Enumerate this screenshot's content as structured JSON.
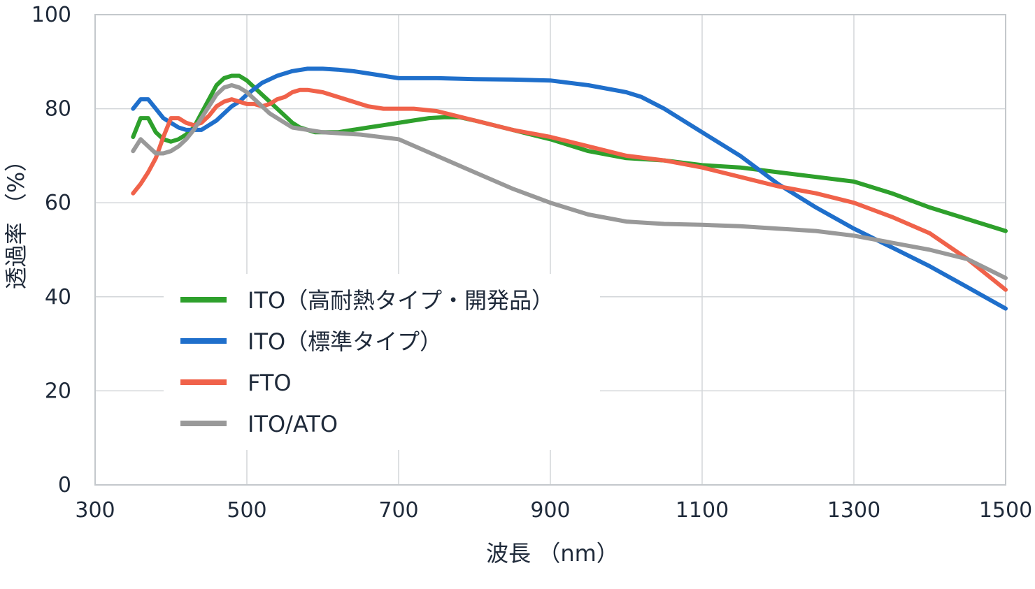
{
  "chart_data": {
    "type": "line",
    "xlabel": "波長 （nm）",
    "ylabel": "透過率 （%）",
    "xlim": [
      300,
      1500
    ],
    "ylim": [
      0,
      100
    ],
    "xticks": [
      "300",
      "500",
      "700",
      "900",
      "1100",
      "1300",
      "1500"
    ],
    "yticks": [
      "0",
      "20",
      "40",
      "60",
      "80",
      "100"
    ],
    "grid": true,
    "legend_position": "center-left",
    "series": [
      {
        "name": "ITO（高耐熱タイプ・開発品）",
        "color": "#2ea02c",
        "points": [
          [
            350,
            74
          ],
          [
            360,
            78
          ],
          [
            370,
            78
          ],
          [
            380,
            75
          ],
          [
            390,
            73.5
          ],
          [
            400,
            73
          ],
          [
            410,
            73.5
          ],
          [
            420,
            74.5
          ],
          [
            430,
            76
          ],
          [
            440,
            79
          ],
          [
            450,
            82
          ],
          [
            460,
            85
          ],
          [
            470,
            86.5
          ],
          [
            480,
            87
          ],
          [
            490,
            87
          ],
          [
            500,
            86
          ],
          [
            510,
            84.5
          ],
          [
            520,
            83
          ],
          [
            530,
            81.5
          ],
          [
            540,
            80
          ],
          [
            550,
            78.5
          ],
          [
            560,
            77
          ],
          [
            570,
            76
          ],
          [
            580,
            75.5
          ],
          [
            590,
            75
          ],
          [
            600,
            75
          ],
          [
            620,
            75
          ],
          [
            640,
            75.5
          ],
          [
            660,
            76
          ],
          [
            680,
            76.5
          ],
          [
            700,
            77
          ],
          [
            720,
            77.5
          ],
          [
            740,
            78
          ],
          [
            760,
            78.2
          ],
          [
            780,
            78.2
          ],
          [
            800,
            77.5
          ],
          [
            850,
            75.5
          ],
          [
            900,
            73.5
          ],
          [
            950,
            71
          ],
          [
            1000,
            69.5
          ],
          [
            1050,
            69
          ],
          [
            1100,
            68
          ],
          [
            1150,
            67.5
          ],
          [
            1200,
            66.5
          ],
          [
            1250,
            65.5
          ],
          [
            1300,
            64.5
          ],
          [
            1350,
            62
          ],
          [
            1400,
            59
          ],
          [
            1450,
            56.5
          ],
          [
            1500,
            54
          ]
        ]
      },
      {
        "name": "ITO（標準タイプ）",
        "color": "#1f6fcb",
        "points": [
          [
            350,
            80
          ],
          [
            360,
            82
          ],
          [
            370,
            82
          ],
          [
            380,
            80
          ],
          [
            390,
            78
          ],
          [
            400,
            77
          ],
          [
            410,
            76
          ],
          [
            420,
            75.5
          ],
          [
            430,
            75.5
          ],
          [
            440,
            75.5
          ],
          [
            450,
            76.5
          ],
          [
            460,
            77.5
          ],
          [
            470,
            79
          ],
          [
            480,
            80.5
          ],
          [
            490,
            81.5
          ],
          [
            500,
            83
          ],
          [
            520,
            85.5
          ],
          [
            540,
            87
          ],
          [
            560,
            88
          ],
          [
            580,
            88.5
          ],
          [
            600,
            88.5
          ],
          [
            620,
            88.3
          ],
          [
            640,
            88
          ],
          [
            660,
            87.5
          ],
          [
            680,
            87
          ],
          [
            700,
            86.5
          ],
          [
            750,
            86.5
          ],
          [
            800,
            86.3
          ],
          [
            850,
            86.2
          ],
          [
            900,
            86
          ],
          [
            950,
            85
          ],
          [
            1000,
            83.5
          ],
          [
            1020,
            82.5
          ],
          [
            1050,
            80
          ],
          [
            1100,
            75
          ],
          [
            1150,
            70
          ],
          [
            1200,
            64
          ],
          [
            1250,
            59
          ],
          [
            1300,
            54.5
          ],
          [
            1350,
            50.5
          ],
          [
            1400,
            46.5
          ],
          [
            1450,
            42
          ],
          [
            1500,
            37.5
          ]
        ]
      },
      {
        "name": "FTO",
        "color": "#f0624a",
        "points": [
          [
            350,
            62
          ],
          [
            360,
            64
          ],
          [
            370,
            66.5
          ],
          [
            380,
            69.5
          ],
          [
            390,
            74
          ],
          [
            400,
            78
          ],
          [
            410,
            78
          ],
          [
            420,
            77
          ],
          [
            430,
            76.5
          ],
          [
            440,
            77
          ],
          [
            450,
            78.5
          ],
          [
            460,
            80.5
          ],
          [
            470,
            81.5
          ],
          [
            480,
            82
          ],
          [
            490,
            81.5
          ],
          [
            500,
            81
          ],
          [
            510,
            81
          ],
          [
            520,
            80.5
          ],
          [
            530,
            81
          ],
          [
            540,
            82
          ],
          [
            550,
            82.5
          ],
          [
            560,
            83.5
          ],
          [
            570,
            84
          ],
          [
            580,
            84
          ],
          [
            600,
            83.5
          ],
          [
            620,
            82.5
          ],
          [
            640,
            81.5
          ],
          [
            660,
            80.5
          ],
          [
            680,
            80
          ],
          [
            700,
            80
          ],
          [
            720,
            80
          ],
          [
            750,
            79.5
          ],
          [
            800,
            77.5
          ],
          [
            850,
            75.5
          ],
          [
            900,
            74
          ],
          [
            950,
            72
          ],
          [
            1000,
            70
          ],
          [
            1050,
            69
          ],
          [
            1100,
            67.5
          ],
          [
            1150,
            65.5
          ],
          [
            1200,
            63.5
          ],
          [
            1250,
            62
          ],
          [
            1300,
            60
          ],
          [
            1350,
            57
          ],
          [
            1400,
            53.5
          ],
          [
            1450,
            48
          ],
          [
            1500,
            41.5
          ]
        ]
      },
      {
        "name": "ITO/ATO",
        "color": "#999999",
        "points": [
          [
            350,
            71
          ],
          [
            360,
            73.5
          ],
          [
            370,
            72
          ],
          [
            380,
            70.5
          ],
          [
            390,
            70.5
          ],
          [
            400,
            71
          ],
          [
            410,
            72
          ],
          [
            420,
            73.5
          ],
          [
            430,
            75.5
          ],
          [
            440,
            78
          ],
          [
            450,
            80.5
          ],
          [
            460,
            83
          ],
          [
            470,
            84.5
          ],
          [
            480,
            85
          ],
          [
            490,
            84.5
          ],
          [
            500,
            83.5
          ],
          [
            510,
            82
          ],
          [
            520,
            80.5
          ],
          [
            530,
            79
          ],
          [
            540,
            78
          ],
          [
            560,
            76
          ],
          [
            580,
            75.5
          ],
          [
            600,
            75
          ],
          [
            650,
            74.5
          ],
          [
            700,
            73.5
          ],
          [
            750,
            70
          ],
          [
            800,
            66.5
          ],
          [
            850,
            63
          ],
          [
            900,
            60
          ],
          [
            950,
            57.5
          ],
          [
            1000,
            56
          ],
          [
            1050,
            55.5
          ],
          [
            1100,
            55.3
          ],
          [
            1150,
            55
          ],
          [
            1200,
            54.5
          ],
          [
            1250,
            54
          ],
          [
            1300,
            53
          ],
          [
            1350,
            51.5
          ],
          [
            1400,
            50
          ],
          [
            1450,
            48
          ],
          [
            1500,
            44
          ]
        ]
      }
    ]
  }
}
